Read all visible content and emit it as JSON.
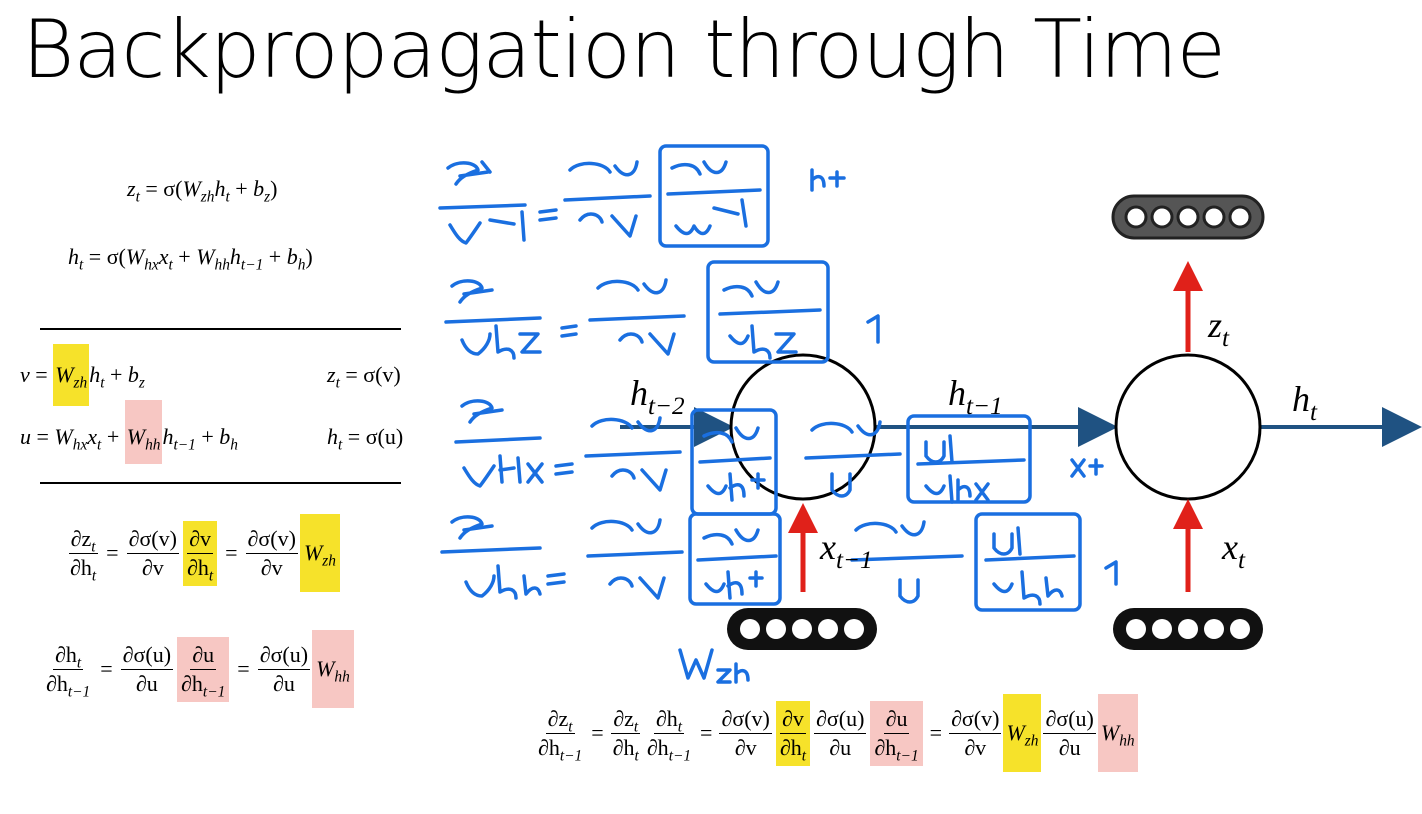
{
  "title": "Backpropagation through Time",
  "colors": {
    "highlight_yellow": "#f6e22a",
    "highlight_pink": "#f7c7c3",
    "arrow_blue": "#1f5282",
    "arrow_red": "#e0211a",
    "ink_blue": "#1a6fe0",
    "node_dark": "#555555"
  },
  "equations": {
    "z_def": {
      "lhs": "z",
      "lhs_sub": "t",
      "eq": " = σ(",
      "w": "W",
      "w_sub": "zh",
      "h": "h",
      "h_sub": "t",
      "plus": " + ",
      "b": "b",
      "b_sub": "z",
      "close": ")"
    },
    "h_def": {
      "lhs": "h",
      "lhs_sub": "t",
      "eq": " = σ(",
      "w1": "W",
      "w1_sub": "hx",
      "x": "x",
      "x_sub": "t",
      "plus1": " + ",
      "w2": "W",
      "w2_sub": "hh",
      "h": "h",
      "h_sub": "t−1",
      "plus2": " + ",
      "b": "b",
      "b_sub": "h",
      "close": ")"
    },
    "v_def": {
      "lhs": "v",
      "eq": " = ",
      "w": "W",
      "w_sub": "zh",
      "h": "h",
      "h_sub": "t",
      "rest": " + ",
      "b": "b",
      "b_sub": "z"
    },
    "z_of_v": {
      "lhs": "z",
      "lhs_sub": "t",
      "rhs": " = σ(v)"
    },
    "u_def": {
      "lhs": "u",
      "eq": " = ",
      "w1": "W",
      "w1_sub": "hx",
      "x": "x",
      "x_sub": "t",
      "plus": " + ",
      "w2": "W",
      "w2_sub": "hh",
      "h": "h",
      "h_sub": "t−1",
      "rest": " + ",
      "b": "b",
      "b_sub": "h"
    },
    "h_of_u": {
      "lhs": "h",
      "lhs_sub": "t",
      "rhs": " = σ(u)"
    },
    "dz_dh": {
      "n1": "∂z",
      "n1s": "t",
      "d1": "∂h",
      "d1s": "t",
      "n2": "∂σ(v)",
      "d2": "∂v",
      "n3": "∂v",
      "d3": "∂h",
      "d3s": "t",
      "n4": "∂σ(v)",
      "d4": "∂v",
      "w": "W",
      "ws": "zh",
      "eq": "="
    },
    "dh_dh": {
      "n1": "∂h",
      "n1s": "t",
      "d1": "∂h",
      "d1s": "t−1",
      "n2": "∂σ(u)",
      "d2": "∂u",
      "n3": "∂u",
      "d3": "∂h",
      "d3s": "t−1",
      "n4": "∂σ(u)",
      "d4": "∂u",
      "w": "W",
      "ws": "hh",
      "eq": "="
    },
    "chain": {
      "n1": "∂z",
      "n1s": "t",
      "d1": "∂h",
      "d1s": "t−1",
      "n2": "∂z",
      "n2s": "t",
      "d2": "∂h",
      "d2s": "t",
      "n3": "∂h",
      "n3s": "t",
      "d3": "∂h",
      "d3s": "t−1",
      "n4": "∂σ(v)",
      "d4": "∂v",
      "n5": "∂v",
      "d5": "∂h",
      "d5s": "t",
      "n6": "∂σ(u)",
      "d6": "∂u",
      "n7": "∂u",
      "d7": "∂h",
      "d7s": "t−1",
      "n8": "∂σ(v)",
      "d8": "∂v",
      "w1": "W",
      "w1s": "zh",
      "n9": "∂σ(u)",
      "d9": "∂u",
      "w2": "W",
      "w2s": "hh",
      "eq": "="
    }
  },
  "diagram": {
    "h_t_minus_2": {
      "base": "h",
      "sub": "t−2"
    },
    "h_t_minus_1": {
      "base": "h",
      "sub": "t−1"
    },
    "h_t": {
      "base": "h",
      "sub": "t"
    },
    "z_t": {
      "base": "z",
      "sub": "t"
    },
    "x_t_minus_1": {
      "base": "x",
      "sub": "t−1"
    },
    "x_t": {
      "base": "x",
      "sub": "t"
    },
    "vector_dots": 5
  },
  "handwritten": {
    "lines": [
      "∂z_t/∂W_zh = ∂σ(v)/∂v · [∂v/∂W_zh]   h_t",
      "∂z_t/∂b_z = ∂σ(v)/∂v · [∂v/∂b_z]   1",
      "∂z_t/∂W_hx = ∂σ(v)/∂v · [∂v/∂h_t] · ∂σ(u)/∂u · [∂u/∂W_hx]   x_t",
      "∂z_t/∂b_h = ∂σ(v)/∂v · [∂v/∂h_t] · ∂σ(u)/∂u · [∂u/∂b_h]   1",
      "W_zh"
    ]
  }
}
